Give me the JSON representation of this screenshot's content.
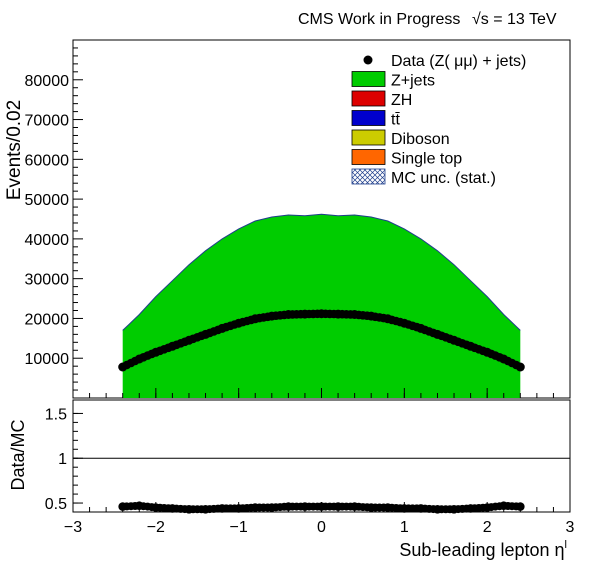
{
  "header": {
    "experiment": "CMS Work in Progress",
    "energy": "√s = 13 TeV"
  },
  "colors": {
    "zjets": "#00cc00",
    "zh": "#dd0000",
    "ttbar": "#0000cc",
    "diboson": "#cccc00",
    "singletop": "#ff6600",
    "data": "#000000",
    "mc_unc": "#1f3e8c"
  },
  "chart_data": [
    {
      "type": "bar",
      "panel": "main",
      "ylabel": "Events/0.02",
      "xlim": [
        -3,
        3
      ],
      "ylim": [
        0,
        90000
      ],
      "yticks": [
        "10000",
        "20000",
        "30000",
        "40000",
        "50000",
        "60000",
        "70000",
        "80000"
      ],
      "legend_position": "top-right",
      "legend": [
        {
          "label": "Data (Z( μμ) + jets)",
          "kind": "marker",
          "color_key": "data"
        },
        {
          "label": "Z+jets",
          "kind": "fill",
          "color_key": "zjets"
        },
        {
          "label": "ZH",
          "kind": "fill",
          "color_key": "zh"
        },
        {
          "label": "tt̄",
          "kind": "fill",
          "color_key": "ttbar"
        },
        {
          "label": "Diboson",
          "kind": "fill",
          "color_key": "diboson"
        },
        {
          "label": "Single top",
          "kind": "fill",
          "color_key": "singletop"
        },
        {
          "label": "MC unc. (stat.)",
          "kind": "hatch",
          "color_key": "mc_unc"
        }
      ],
      "x": [
        -2.4,
        -2.2,
        -2.0,
        -1.8,
        -1.6,
        -1.4,
        -1.2,
        -1.0,
        -0.8,
        -0.6,
        -0.4,
        -0.2,
        0.0,
        0.2,
        0.4,
        0.6,
        0.8,
        1.0,
        1.2,
        1.4,
        1.6,
        1.8,
        2.0,
        2.2,
        2.4
      ],
      "series": [
        {
          "name": "Z+jets",
          "values": [
            17000,
            21000,
            25500,
            29500,
            33500,
            37000,
            40000,
            42500,
            44500,
            45500,
            46000,
            45800,
            46200,
            45800,
            46000,
            45500,
            44500,
            42500,
            40000,
            37000,
            33500,
            29500,
            25500,
            21000,
            17000
          ]
        },
        {
          "name": "Data (Z( μμ) + jets)",
          "values": [
            7800,
            9800,
            11500,
            13000,
            14500,
            16000,
            17500,
            18800,
            19900,
            20600,
            21000,
            21100,
            21200,
            21100,
            21000,
            20600,
            19900,
            18800,
            17500,
            16000,
            14500,
            13000,
            11500,
            9800,
            7800
          ]
        }
      ]
    },
    {
      "type": "scatter",
      "panel": "ratio",
      "ylabel": "Data/MC",
      "xlabel": "Sub-leading lepton η",
      "xlabel_sup": "l",
      "xlim": [
        -3,
        3
      ],
      "ylim": [
        0.4,
        1.65
      ],
      "reference_line": 1,
      "xticks": [
        "−3",
        "−2",
        "−1",
        "0",
        "1",
        "2",
        "3"
      ],
      "yticks": [
        "0.5",
        "1",
        "1.5"
      ],
      "x": [
        -2.4,
        -2.2,
        -2.0,
        -1.8,
        -1.6,
        -1.4,
        -1.2,
        -1.0,
        -0.8,
        -0.6,
        -0.4,
        -0.2,
        0.0,
        0.2,
        0.4,
        0.6,
        0.8,
        1.0,
        1.2,
        1.4,
        1.6,
        1.8,
        2.0,
        2.2,
        2.4
      ],
      "values": [
        0.46,
        0.47,
        0.45,
        0.44,
        0.43,
        0.43,
        0.44,
        0.44,
        0.45,
        0.45,
        0.46,
        0.46,
        0.46,
        0.46,
        0.46,
        0.45,
        0.45,
        0.44,
        0.44,
        0.43,
        0.43,
        0.44,
        0.45,
        0.47,
        0.46
      ]
    }
  ]
}
